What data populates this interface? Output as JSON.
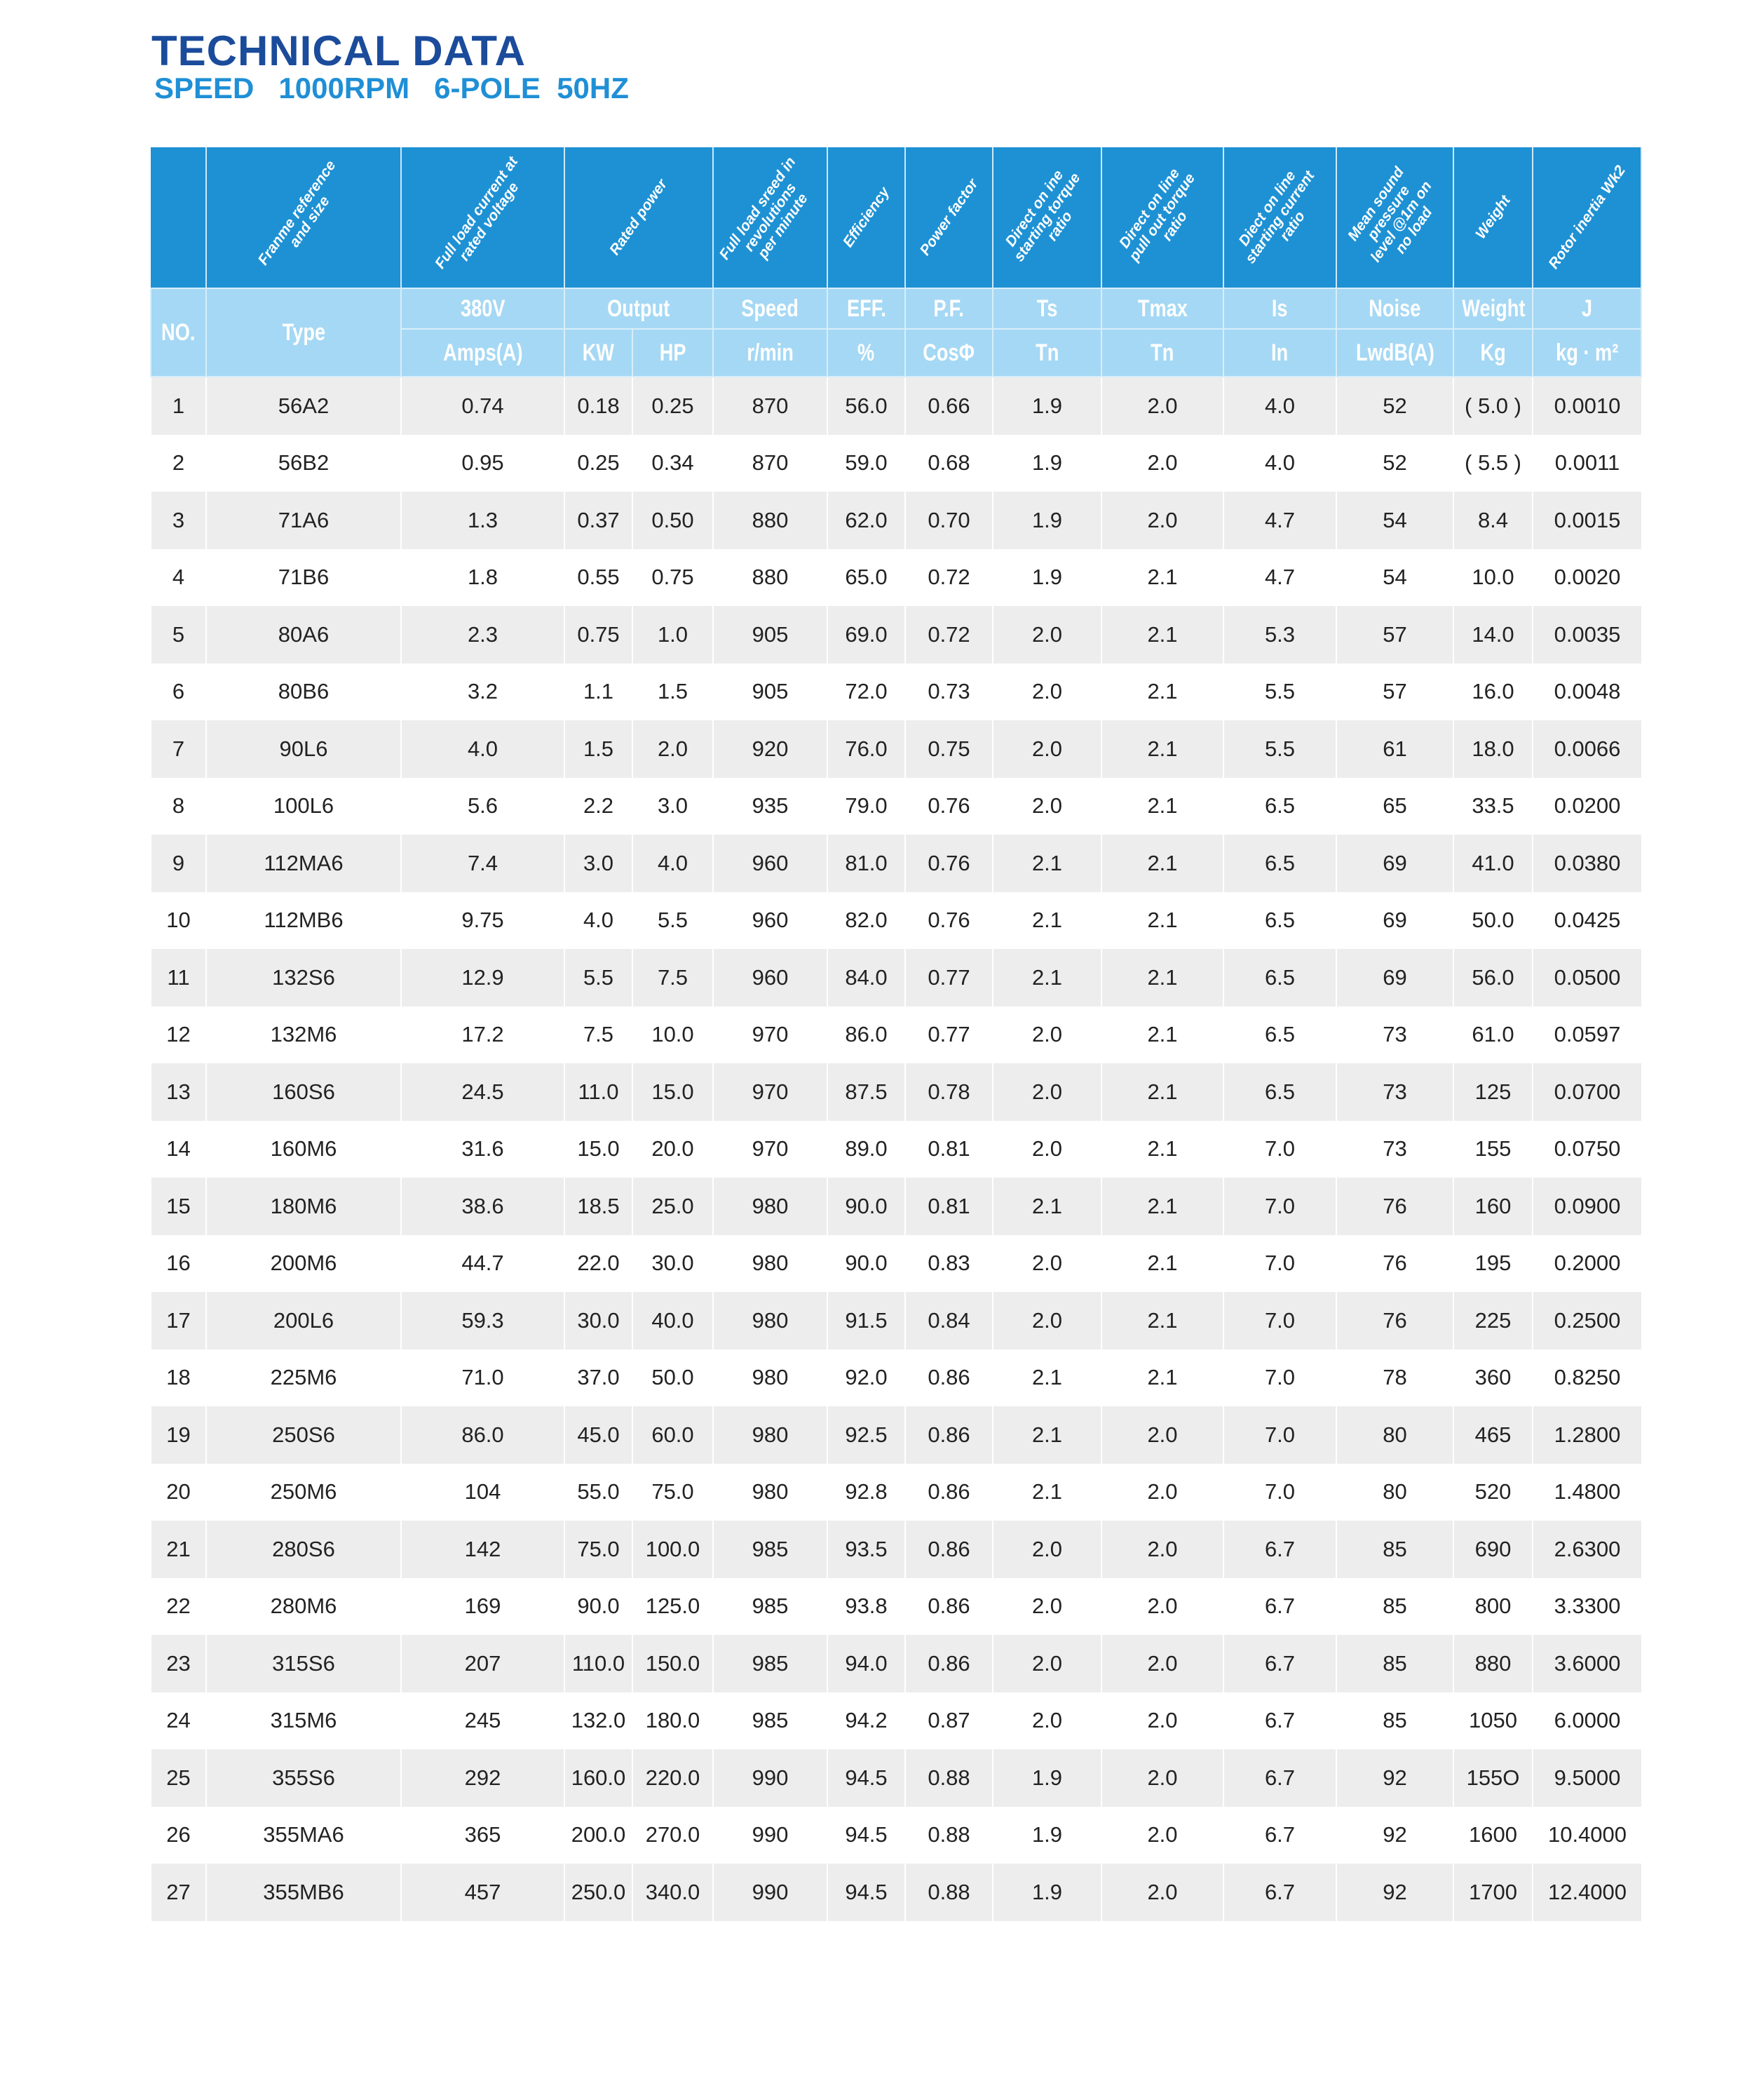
{
  "title": "TECHNICAL DATA",
  "subtitle": "SPEED   1000RPM   6-POLE  50HZ",
  "colors": {
    "title": "#1b4b9b",
    "subtitle": "#1f8fd6",
    "header_dark": "#1e91d4",
    "header_light": "#a5d8f4",
    "row_alt": "#ededed"
  },
  "header": {
    "descriptions": [
      "",
      "Franme reference\nand size",
      "Full load current at\nrated voltage",
      "Rated power",
      "Full load sreed in\nrevolutions\nper minute",
      "Efficiency",
      "Power factor",
      "Direct on ine\nstarting torque\nratio",
      "Direct on line\npull out torque\nratio",
      "Diect on line\nstarting current\nratio",
      "Mean sound\npressure\nlevel @1m on\nno load",
      "Weight",
      "Rotor inertia Wk2"
    ],
    "no": "NO.",
    "type": "Type",
    "row2": [
      "380V",
      "Output",
      "Speed",
      "EFF.",
      "P.F.",
      "Ts",
      "Tmax",
      "Is",
      "Noise",
      "Weight",
      "J"
    ],
    "row3": [
      "Amps(A)",
      "KW",
      "HP",
      "r/min",
      "%",
      "CosΦ",
      "Tn",
      "Tn",
      "In",
      "LwdB(A)",
      "Kg",
      "kg · m²"
    ]
  },
  "rows": [
    [
      "1",
      "56A2",
      "0.74",
      "0.18",
      "0.25",
      "870",
      "56.0",
      "0.66",
      "1.9",
      "2.0",
      "4.0",
      "52",
      "( 5.0 )",
      "0.0010"
    ],
    [
      "2",
      "56B2",
      "0.95",
      "0.25",
      "0.34",
      "870",
      "59.0",
      "0.68",
      "1.9",
      "2.0",
      "4.0",
      "52",
      "( 5.5 )",
      "0.0011"
    ],
    [
      "3",
      "71A6",
      "1.3",
      "0.37",
      "0.50",
      "880",
      "62.0",
      "0.70",
      "1.9",
      "2.0",
      "4.7",
      "54",
      "8.4",
      "0.0015"
    ],
    [
      "4",
      "71B6",
      "1.8",
      "0.55",
      "0.75",
      "880",
      "65.0",
      "0.72",
      "1.9",
      "2.1",
      "4.7",
      "54",
      "10.0",
      "0.0020"
    ],
    [
      "5",
      "80A6",
      "2.3",
      "0.75",
      "1.0",
      "905",
      "69.0",
      "0.72",
      "2.0",
      "2.1",
      "5.3",
      "57",
      "14.0",
      "0.0035"
    ],
    [
      "6",
      "80B6",
      "3.2",
      "1.1",
      "1.5",
      "905",
      "72.0",
      "0.73",
      "2.0",
      "2.1",
      "5.5",
      "57",
      "16.0",
      "0.0048"
    ],
    [
      "7",
      "90L6",
      "4.0",
      "1.5",
      "2.0",
      "920",
      "76.0",
      "0.75",
      "2.0",
      "2.1",
      "5.5",
      "61",
      "18.0",
      "0.0066"
    ],
    [
      "8",
      "100L6",
      "5.6",
      "2.2",
      "3.0",
      "935",
      "79.0",
      "0.76",
      "2.0",
      "2.1",
      "6.5",
      "65",
      "33.5",
      "0.0200"
    ],
    [
      "9",
      "112MA6",
      "7.4",
      "3.0",
      "4.0",
      "960",
      "81.0",
      "0.76",
      "2.1",
      "2.1",
      "6.5",
      "69",
      "41.0",
      "0.0380"
    ],
    [
      "10",
      "112MB6",
      "9.75",
      "4.0",
      "5.5",
      "960",
      "82.0",
      "0.76",
      "2.1",
      "2.1",
      "6.5",
      "69",
      "50.0",
      "0.0425"
    ],
    [
      "11",
      "132S6",
      "12.9",
      "5.5",
      "7.5",
      "960",
      "84.0",
      "0.77",
      "2.1",
      "2.1",
      "6.5",
      "69",
      "56.0",
      "0.0500"
    ],
    [
      "12",
      "132M6",
      "17.2",
      "7.5",
      "10.0",
      "970",
      "86.0",
      "0.77",
      "2.0",
      "2.1",
      "6.5",
      "73",
      "61.0",
      "0.0597"
    ],
    [
      "13",
      "160S6",
      "24.5",
      "11.0",
      "15.0",
      "970",
      "87.5",
      "0.78",
      "2.0",
      "2.1",
      "6.5",
      "73",
      "125",
      "0.0700"
    ],
    [
      "14",
      "160M6",
      "31.6",
      "15.0",
      "20.0",
      "970",
      "89.0",
      "0.81",
      "2.0",
      "2.1",
      "7.0",
      "73",
      "155",
      "0.0750"
    ],
    [
      "15",
      "180M6",
      "38.6",
      "18.5",
      "25.0",
      "980",
      "90.0",
      "0.81",
      "2.1",
      "2.1",
      "7.0",
      "76",
      "160",
      "0.0900"
    ],
    [
      "16",
      "200M6",
      "44.7",
      "22.0",
      "30.0",
      "980",
      "90.0",
      "0.83",
      "2.0",
      "2.1",
      "7.0",
      "76",
      "195",
      "0.2000"
    ],
    [
      "17",
      "200L6",
      "59.3",
      "30.0",
      "40.0",
      "980",
      "91.5",
      "0.84",
      "2.0",
      "2.1",
      "7.0",
      "76",
      "225",
      "0.2500"
    ],
    [
      "18",
      "225M6",
      "71.0",
      "37.0",
      "50.0",
      "980",
      "92.0",
      "0.86",
      "2.1",
      "2.1",
      "7.0",
      "78",
      "360",
      "0.8250"
    ],
    [
      "19",
      "250S6",
      "86.0",
      "45.0",
      "60.0",
      "980",
      "92.5",
      "0.86",
      "2.1",
      "2.0",
      "7.0",
      "80",
      "465",
      "1.2800"
    ],
    [
      "20",
      "250M6",
      "104",
      "55.0",
      "75.0",
      "980",
      "92.8",
      "0.86",
      "2.1",
      "2.0",
      "7.0",
      "80",
      "520",
      "1.4800"
    ],
    [
      "21",
      "280S6",
      "142",
      "75.0",
      "100.0",
      "985",
      "93.5",
      "0.86",
      "2.0",
      "2.0",
      "6.7",
      "85",
      "690",
      "2.6300"
    ],
    [
      "22",
      "280M6",
      "169",
      "90.0",
      "125.0",
      "985",
      "93.8",
      "0.86",
      "2.0",
      "2.0",
      "6.7",
      "85",
      "800",
      "3.3300"
    ],
    [
      "23",
      "315S6",
      "207",
      "110.0",
      "150.0",
      "985",
      "94.0",
      "0.86",
      "2.0",
      "2.0",
      "6.7",
      "85",
      "880",
      "3.6000"
    ],
    [
      "24",
      "315M6",
      "245",
      "132.0",
      "180.0",
      "985",
      "94.2",
      "0.87",
      "2.0",
      "2.0",
      "6.7",
      "85",
      "1050",
      "6.0000"
    ],
    [
      "25",
      "355S6",
      "292",
      "160.0",
      "220.0",
      "990",
      "94.5",
      "0.88",
      "1.9",
      "2.0",
      "6.7",
      "92",
      "155O",
      "9.5000"
    ],
    [
      "26",
      "355MA6",
      "365",
      "200.0",
      "270.0",
      "990",
      "94.5",
      "0.88",
      "1.9",
      "2.0",
      "6.7",
      "92",
      "1600",
      "10.4000"
    ],
    [
      "27",
      "355MB6",
      "457",
      "250.0",
      "340.0",
      "990",
      "94.5",
      "0.88",
      "1.9",
      "2.0",
      "6.7",
      "92",
      "1700",
      "12.4000"
    ]
  ]
}
